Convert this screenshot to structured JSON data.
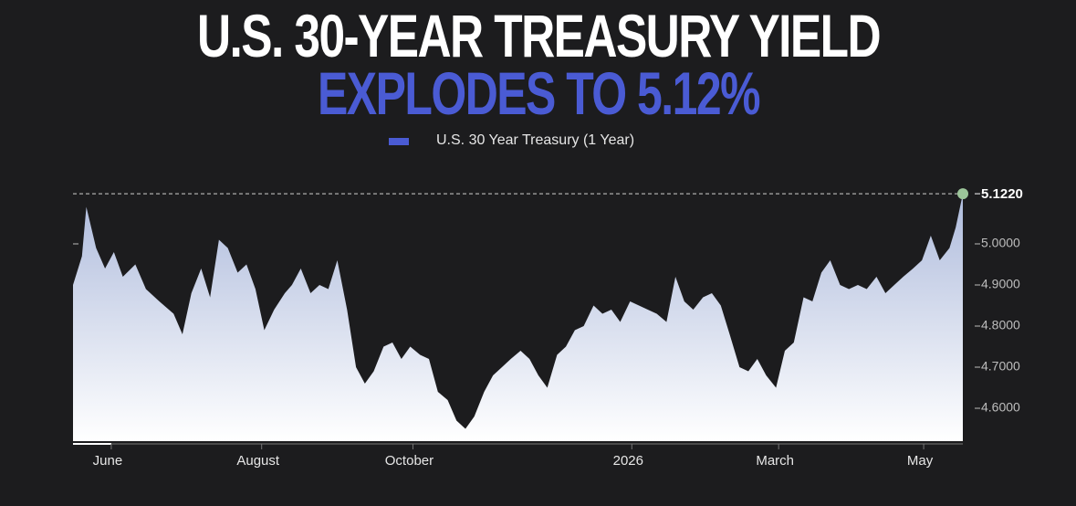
{
  "chart_data": {
    "type": "area",
    "title": [
      "U.S. 30-YEAR TREASURY YIELD",
      "EXPLODES TO 5.12%"
    ],
    "series": [
      {
        "name": "U.S. 30 Year Treasury (1 Year)",
        "color": "#4a5bd4",
        "x": [
          0,
          1,
          1.5,
          2.6,
          3.6,
          4.6,
          5.6,
          7,
          8.2,
          9.7,
          11.3,
          12.3,
          13.3,
          14.4,
          15.4,
          16.4,
          17.4,
          18.5,
          19.5,
          20.5,
          21.5,
          22.6,
          23.8,
          24.6,
          25.6,
          26.7,
          27.7,
          28.7,
          29.7,
          30.8,
          31.8,
          32.8,
          33.8,
          34.9,
          35.9,
          36.9,
          37.9,
          39,
          40,
          41,
          42.1,
          43.1,
          44.1,
          45.1,
          46.2,
          47.2,
          48.2,
          49.2,
          50.3,
          51.3,
          52.3,
          53.3,
          54.4,
          55.4,
          56.4,
          57.4,
          58.5,
          59.5,
          60.5,
          61.5,
          62.6,
          63.6,
          64.6,
          65.6,
          66.7,
          67.7,
          68.7,
          69.7,
          70.8,
          71.8,
          72.8,
          73.8,
          74.9,
          75.9,
          76.9,
          77.9,
          79,
          80,
          81,
          82.1,
          83.1,
          84.1,
          85.1,
          86.2,
          87.2,
          88.2,
          89.2,
          90.3,
          91.3,
          92.3,
          93.3,
          94.4,
          95.4,
          96.4,
          97.4,
          98.5,
          99.2,
          100
        ],
        "values": [
          4.9,
          4.97,
          5.09,
          4.99,
          4.94,
          4.98,
          4.92,
          4.95,
          4.89,
          4.86,
          4.83,
          4.78,
          4.88,
          4.94,
          4.87,
          5.01,
          4.99,
          4.93,
          4.95,
          4.89,
          4.79,
          4.84,
          4.88,
          4.9,
          4.94,
          4.88,
          4.9,
          4.89,
          4.96,
          4.84,
          4.7,
          4.66,
          4.69,
          4.75,
          4.76,
          4.72,
          4.75,
          4.73,
          4.72,
          4.64,
          4.62,
          4.57,
          4.55,
          4.58,
          4.64,
          4.68,
          4.7,
          4.72,
          4.74,
          4.72,
          4.68,
          4.65,
          4.73,
          4.75,
          4.79,
          4.8,
          4.85,
          4.83,
          4.84,
          4.81,
          4.86,
          4.85,
          4.84,
          4.83,
          4.81,
          4.92,
          4.86,
          4.84,
          4.87,
          4.88,
          4.85,
          4.78,
          4.7,
          4.69,
          4.72,
          4.68,
          4.65,
          4.74,
          4.76,
          4.87,
          4.86,
          4.93,
          4.96,
          4.9,
          4.89,
          4.9,
          4.89,
          4.92,
          4.88,
          4.9,
          4.92,
          4.94,
          4.96,
          5.02,
          4.96,
          4.99,
          5.04,
          5.122
        ]
      }
    ],
    "xlim": [
      0,
      100
    ],
    "xticks": [
      {
        "value": 4.3,
        "label": "June"
      },
      {
        "value": 21.2,
        "label": "August"
      },
      {
        "value": 38.2,
        "label": "October"
      },
      {
        "value": 62.8,
        "label": "2026"
      },
      {
        "value": 79.3,
        "label": "March"
      },
      {
        "value": 95.6,
        "label": "May"
      }
    ],
    "ylim": [
      4.52,
      5.14
    ],
    "yticks": [
      {
        "value": 4.6,
        "label": "4.6000"
      },
      {
        "value": 4.7,
        "label": "4.7000"
      },
      {
        "value": 4.8,
        "label": "4.8000"
      },
      {
        "value": 4.9,
        "label": "4.9000"
      },
      {
        "value": 5.0,
        "label": "5.0000"
      }
    ],
    "reference_line": {
      "value": 5.122,
      "label": "5.1220"
    }
  }
}
